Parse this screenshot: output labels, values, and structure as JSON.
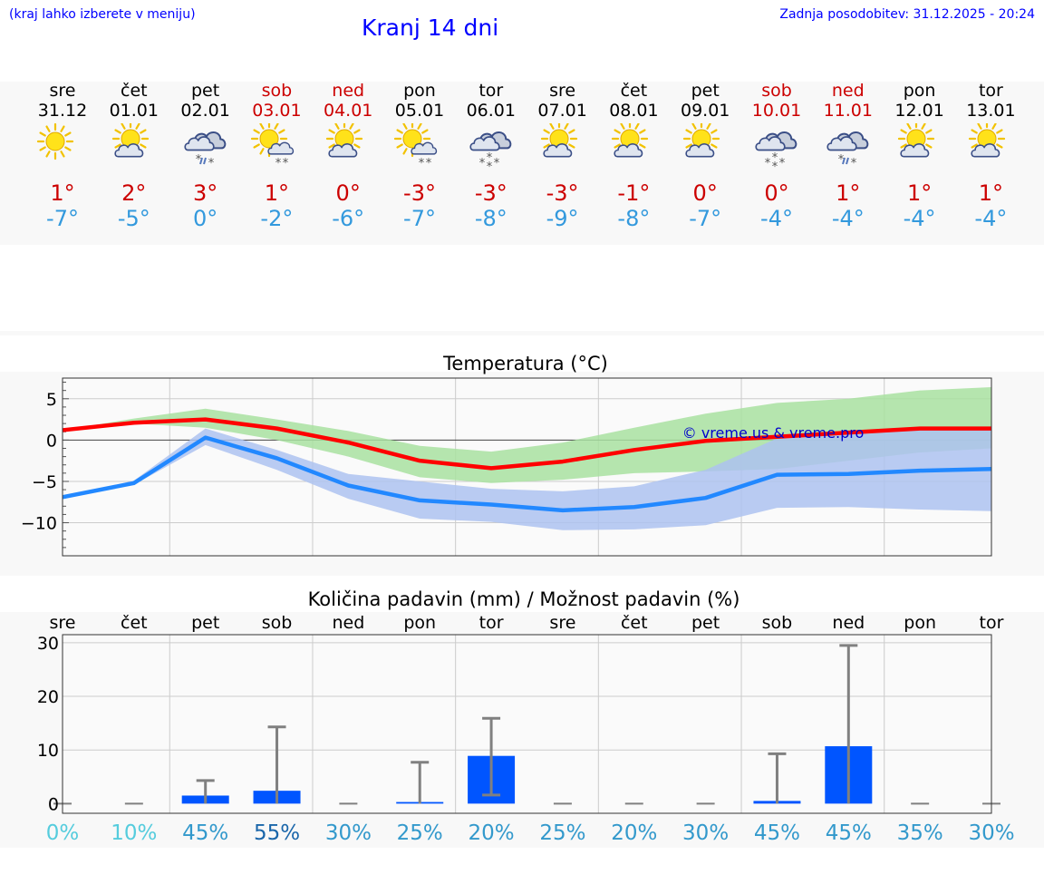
{
  "header": {
    "left_note": "(kraj lahko izberete v meniju)",
    "title": "Kranj 14 dni",
    "updated": "Zadnja posodobitev: 31.12.2025 - 20:24"
  },
  "days": [
    {
      "name": "sre",
      "date": "31.12",
      "weekend": false,
      "icon": "sun-icon",
      "tmax": "1°",
      "tmin": "-7°"
    },
    {
      "name": "čet",
      "date": "01.01",
      "weekend": false,
      "icon": "sun-cloud-icon",
      "tmax": "2°",
      "tmin": "-5°"
    },
    {
      "name": "pet",
      "date": "02.01",
      "weekend": false,
      "icon": "cloud-sleet-icon",
      "tmax": "3°",
      "tmin": "0°"
    },
    {
      "name": "sob",
      "date": "03.01",
      "weekend": true,
      "icon": "sun-cloud-snow-icon",
      "tmax": "1°",
      "tmin": "-2°"
    },
    {
      "name": "ned",
      "date": "04.01",
      "weekend": true,
      "icon": "sun-cloud-icon",
      "tmax": "0°",
      "tmin": "-6°"
    },
    {
      "name": "pon",
      "date": "05.01",
      "weekend": false,
      "icon": "sun-cloud-snow-icon",
      "tmax": "-3°",
      "tmin": "-7°"
    },
    {
      "name": "tor",
      "date": "06.01",
      "weekend": false,
      "icon": "cloud-snow-icon",
      "tmax": "-3°",
      "tmin": "-8°"
    },
    {
      "name": "sre",
      "date": "07.01",
      "weekend": false,
      "icon": "sun-cloud-icon",
      "tmax": "-3°",
      "tmin": "-9°"
    },
    {
      "name": "čet",
      "date": "08.01",
      "weekend": false,
      "icon": "sun-cloud-icon",
      "tmax": "-1°",
      "tmin": "-8°"
    },
    {
      "name": "pet",
      "date": "09.01",
      "weekend": false,
      "icon": "sun-cloud-icon",
      "tmax": "0°",
      "tmin": "-7°"
    },
    {
      "name": "sob",
      "date": "10.01",
      "weekend": true,
      "icon": "cloud-snow-icon",
      "tmax": "0°",
      "tmin": "-4°"
    },
    {
      "name": "ned",
      "date": "11.01",
      "weekend": true,
      "icon": "cloud-sleet-icon",
      "tmax": "1°",
      "tmin": "-4°"
    },
    {
      "name": "pon",
      "date": "12.01",
      "weekend": false,
      "icon": "sun-cloud-icon",
      "tmax": "1°",
      "tmin": "-4°"
    },
    {
      "name": "tor",
      "date": "13.01",
      "weekend": false,
      "icon": "sun-cloud-icon",
      "tmax": "1°",
      "tmin": "-4°"
    }
  ],
  "chart_data": [
    {
      "type": "line",
      "title": "Temperatura (°C)",
      "watermark": "© vreme.us & vreme.pro",
      "ylim": [
        -14,
        7.5
      ],
      "yticks": [
        5,
        0,
        -5,
        -10
      ],
      "yticklabels": [
        "5",
        "0",
        "−5",
        "−10"
      ],
      "x": [
        0,
        1,
        2,
        3,
        4,
        5,
        6,
        7,
        8,
        9,
        10,
        11,
        12,
        13
      ],
      "series": [
        {
          "name": "max",
          "color": "#ff0000",
          "values": [
            1.2,
            2.1,
            2.5,
            1.4,
            -0.3,
            -2.5,
            -3.4,
            -2.6,
            -1.2,
            -0.1,
            0.4,
            0.9,
            1.4,
            1.4
          ],
          "band_low": [
            1.2,
            2.0,
            1.5,
            0.0,
            -2.0,
            -4.5,
            -5.2,
            -4.8,
            -4.0,
            -3.8,
            -3.5,
            -2.5,
            -1.5,
            -1.0
          ],
          "band_high": [
            1.2,
            2.6,
            3.8,
            2.5,
            1.1,
            -0.7,
            -1.4,
            -0.3,
            1.5,
            3.2,
            4.5,
            5.0,
            6.0,
            6.4
          ],
          "band_color": "#a8e0a0"
        },
        {
          "name": "min",
          "color": "#2288ff",
          "values": [
            -6.9,
            -5.2,
            0.3,
            -2.2,
            -5.5,
            -7.3,
            -7.8,
            -8.5,
            -8.1,
            -7.0,
            -4.2,
            -4.1,
            -3.7,
            -3.5
          ],
          "band_low": [
            -6.9,
            -5.4,
            -0.6,
            -3.6,
            -7.1,
            -9.5,
            -9.9,
            -10.9,
            -10.8,
            -10.3,
            -8.2,
            -8.1,
            -8.4,
            -8.6
          ],
          "band_high": [
            -6.9,
            -4.9,
            1.4,
            -1.2,
            -4.1,
            -5.0,
            -5.9,
            -6.2,
            -5.6,
            -3.6,
            0.2,
            0.8,
            1.2,
            1.4
          ],
          "band_color": "#adc2f0"
        }
      ]
    },
    {
      "type": "bar",
      "title": "Količina padavin (mm) / Možnost padavin (%)",
      "categories": [
        "sre",
        "čet",
        "pet",
        "sob",
        "ned",
        "pon",
        "tor",
        "sre",
        "čet",
        "pet",
        "sob",
        "ned",
        "pon",
        "tor"
      ],
      "ylim": [
        -1.8,
        31.5
      ],
      "yticks": [
        30,
        20,
        10,
        0
      ],
      "yticklabels": [
        "30",
        "20",
        "10",
        "0"
      ],
      "values": [
        0,
        0,
        1.5,
        2.4,
        0,
        0.3,
        8.9,
        0,
        0,
        0,
        0.5,
        10.7,
        0,
        0
      ],
      "err_low": [
        0,
        0,
        0,
        0,
        0,
        0,
        1.6,
        0,
        0,
        0,
        0,
        0,
        0,
        0
      ],
      "err_high": [
        0,
        0,
        4.3,
        14.3,
        0,
        7.7,
        15.9,
        0,
        0,
        0,
        9.3,
        29.5,
        0,
        0
      ],
      "probability": [
        "0%",
        "10%",
        "45%",
        "55%",
        "30%",
        "25%",
        "20%",
        "25%",
        "20%",
        "30%",
        "45%",
        "45%",
        "35%",
        "30%"
      ],
      "probability_colors": [
        "#55ccdd",
        "#55ccdd",
        "#3399cc",
        "#1a66aa",
        "#3399cc",
        "#3399cc",
        "#3399cc",
        "#3399cc",
        "#3399cc",
        "#3399cc",
        "#3399cc",
        "#3399cc",
        "#3399cc",
        "#3399cc"
      ],
      "bar_color": "#0055ff",
      "err_color": "#808080"
    }
  ]
}
